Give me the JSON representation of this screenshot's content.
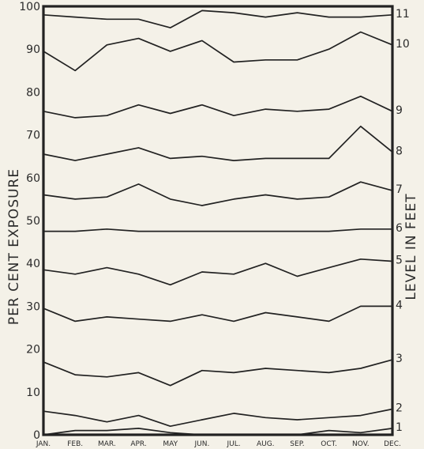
{
  "chart_data": {
    "type": "line",
    "title": "",
    "ylabel_left": "PER CENT EXPOSURE",
    "ylabel_right": "LEVEL IN FEET",
    "ylim": [
      0,
      100
    ],
    "yticks": [
      0,
      10,
      20,
      30,
      40,
      50,
      60,
      70,
      80,
      90,
      100
    ],
    "categories": [
      "JAN.",
      "FEB.",
      "MAR.",
      "APR.",
      "MAY",
      "JUN.",
      "JUL.",
      "AUG.",
      "SEP.",
      "OCT.",
      "NOV.",
      "DEC."
    ],
    "grid": false,
    "legend": "none",
    "series": [
      {
        "name": "1",
        "values": [
          0,
          1,
          1,
          1.5,
          0.5,
          0,
          0,
          0,
          0,
          1,
          0.5,
          1.5
        ]
      },
      {
        "name": "2",
        "values": [
          5.5,
          4.5,
          3,
          4.5,
          2,
          3.5,
          5,
          4,
          3.5,
          4,
          4.5,
          6
        ]
      },
      {
        "name": "3",
        "values": [
          17,
          14,
          13.5,
          14.5,
          11.5,
          15,
          14.5,
          15.5,
          15,
          14.5,
          15.5,
          17.5
        ]
      },
      {
        "name": "4",
        "values": [
          29.5,
          26.5,
          27.5,
          27,
          26.5,
          28,
          26.5,
          28.5,
          27.5,
          26.5,
          30,
          30
        ]
      },
      {
        "name": "5",
        "values": [
          38.5,
          37.5,
          39,
          37.5,
          35,
          38,
          37.5,
          40,
          37,
          39,
          41,
          40.5
        ]
      },
      {
        "name": "6",
        "values": [
          47.5,
          47.5,
          48,
          47.5,
          47.5,
          47.5,
          47.5,
          47.5,
          47.5,
          47.5,
          48,
          48
        ]
      },
      {
        "name": "7",
        "values": [
          56,
          55,
          55.5,
          58.5,
          55,
          53.5,
          55,
          56,
          55,
          55.5,
          59,
          57
        ]
      },
      {
        "name": "8",
        "values": [
          65.5,
          64,
          65.5,
          67,
          64.5,
          65,
          64,
          64.5,
          64.5,
          64.5,
          72,
          66
        ]
      },
      {
        "name": "9",
        "values": [
          75.5,
          74,
          74.5,
          77,
          75,
          77,
          74.5,
          76,
          75.5,
          76,
          79,
          75.5
        ]
      },
      {
        "name": "10",
        "values": [
          89.5,
          85,
          91,
          92.5,
          89.5,
          92,
          87,
          87.5,
          87.5,
          90,
          94,
          91
        ]
      },
      {
        "name": "11",
        "values": [
          98,
          97.5,
          97,
          97,
          95,
          99,
          98.5,
          97.5,
          98.5,
          97.5,
          97.5,
          98
        ]
      }
    ]
  }
}
